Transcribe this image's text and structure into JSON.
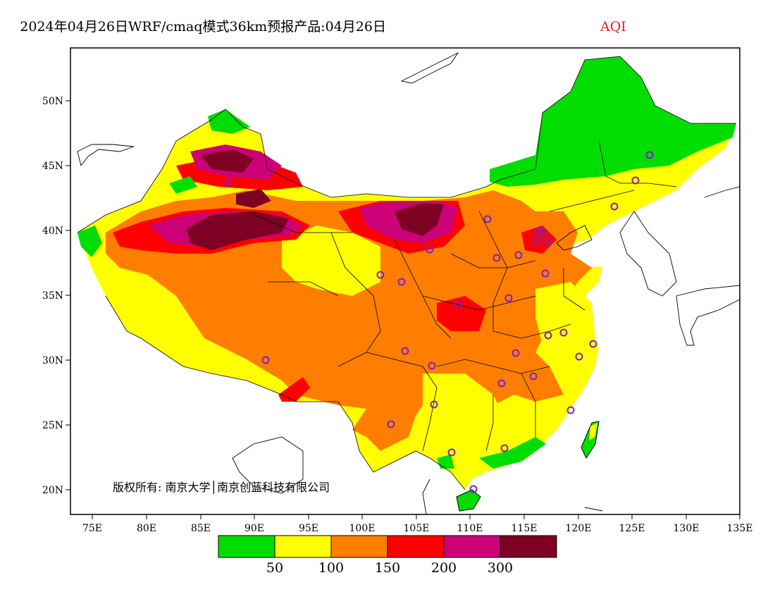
{
  "title": {
    "main": "2024年04月26日WRF/cmaq模式36km预报产品:04月26日",
    "variable": "AQI",
    "variable_color": "#e02020"
  },
  "map": {
    "lat_ticks": [
      "50N",
      "45N",
      "40N",
      "35N",
      "30N",
      "25N",
      "20N"
    ],
    "lon_ticks": [
      "75E",
      "80E",
      "85E",
      "90E",
      "95E",
      "100E",
      "105E",
      "110E",
      "115E",
      "120E",
      "125E",
      "130E",
      "135E"
    ],
    "copyright": "版权所有: 南京大学│南京创蓝科技有限公司",
    "station_marker_color": "#8020c0"
  },
  "legend": {
    "colors": [
      "#00dd00",
      "#ffff00",
      "#ff7e00",
      "#ff0000",
      "#cc0077",
      "#7e0023"
    ],
    "labels": [
      "50",
      "100",
      "150",
      "200",
      "300"
    ]
  }
}
